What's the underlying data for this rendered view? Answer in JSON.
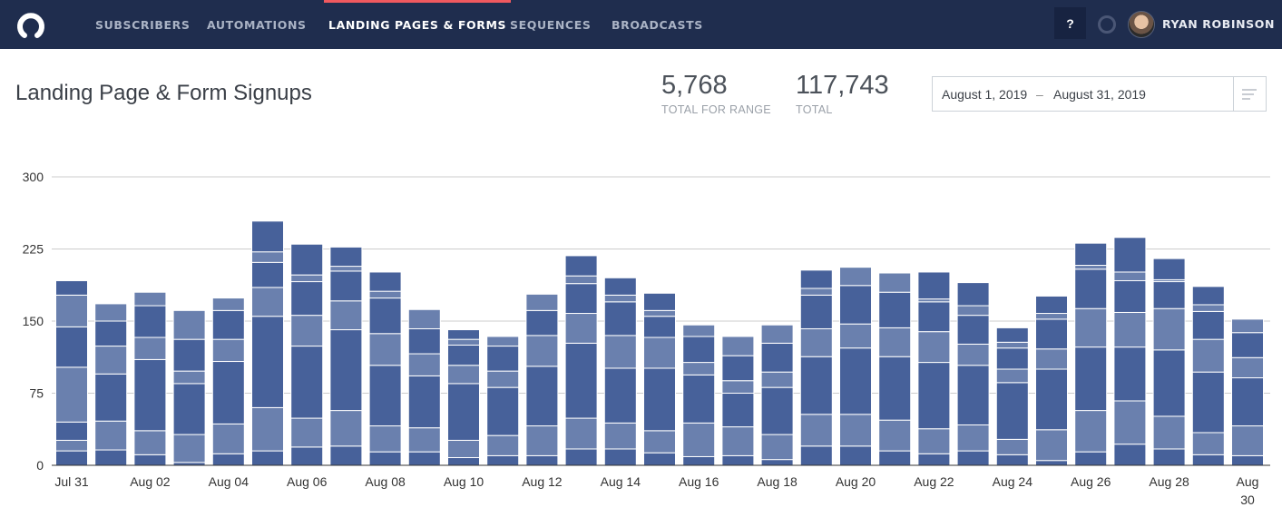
{
  "nav": {
    "logo": "convertkit-logo",
    "tabs": [
      {
        "label": "SUBSCRIBERS",
        "active": false
      },
      {
        "label": "AUTOMATIONS",
        "active": false
      },
      {
        "label": "LANDING PAGES & FORMS",
        "active": true
      },
      {
        "label": "SEQUENCES",
        "active": false
      },
      {
        "label": "BROADCASTS",
        "active": false
      }
    ],
    "help_label": "?",
    "user_name": "RYAN ROBINSON",
    "accent": "#f0595f"
  },
  "page": {
    "title": "Landing Page & Form Signups",
    "stats": [
      {
        "value": "5,768",
        "label": "TOTAL FOR RANGE"
      },
      {
        "value": "117,743",
        "label": "TOTAL"
      }
    ],
    "date_range": {
      "start": "August 1, 2019",
      "separator": "–",
      "end": "August 31, 2019",
      "icon": "menu-lines-icon"
    }
  },
  "chart_data": {
    "type": "bar",
    "stacked": true,
    "ylim": [
      0,
      300
    ],
    "yticks": [
      0,
      75,
      150,
      225,
      300
    ],
    "grid": true,
    "colors": [
      "#47619a",
      "#6a80ae"
    ],
    "categories": [
      "Jul 31",
      "Aug 01",
      "Aug 02",
      "Aug 03",
      "Aug 04",
      "Aug 05",
      "Aug 06",
      "Aug 07",
      "Aug 08",
      "Aug 09",
      "Aug 10",
      "Aug 11",
      "Aug 12",
      "Aug 13",
      "Aug 14",
      "Aug 15",
      "Aug 16",
      "Aug 17",
      "Aug 18",
      "Aug 19",
      "Aug 20",
      "Aug 21",
      "Aug 22",
      "Aug 23",
      "Aug 24",
      "Aug 25",
      "Aug 26",
      "Aug 27",
      "Aug 28",
      "Aug 29",
      "Aug 30"
    ],
    "xtick_labels": [
      "Jul 31",
      "Aug 02",
      "Aug 04",
      "Aug 06",
      "Aug 08",
      "Aug 10",
      "Aug 12",
      "Aug 14",
      "Aug 16",
      "Aug 18",
      "Aug 20",
      "Aug 22",
      "Aug 24",
      "Aug 26",
      "Aug 28",
      "Aug 30"
    ],
    "cumulative_stacks": [
      [
        15,
        26,
        45,
        102,
        144,
        177,
        192
      ],
      [
        16,
        46,
        95,
        124,
        150,
        168
      ],
      [
        11,
        36,
        110,
        133,
        166,
        180
      ],
      [
        3,
        32,
        85,
        98,
        131,
        161
      ],
      [
        12,
        43,
        108,
        131,
        161,
        174
      ],
      [
        15,
        60,
        155,
        185,
        211,
        222,
        254
      ],
      [
        19,
        49,
        124,
        156,
        191,
        198,
        230
      ],
      [
        20,
        57,
        141,
        171,
        202,
        207,
        227
      ],
      [
        14,
        41,
        104,
        137,
        174,
        181,
        201
      ],
      [
        14,
        39,
        93,
        116,
        142,
        162
      ],
      [
        8,
        26,
        85,
        104,
        125,
        131,
        141
      ],
      [
        10,
        31,
        81,
        98,
        124,
        134
      ],
      [
        10,
        41,
        103,
        135,
        161,
        178
      ],
      [
        17,
        49,
        127,
        158,
        189,
        197,
        218
      ],
      [
        17,
        44,
        101,
        135,
        170,
        177,
        195
      ],
      [
        13,
        36,
        101,
        133,
        155,
        161,
        179
      ],
      [
        9,
        44,
        94,
        107,
        134,
        146
      ],
      [
        10,
        40,
        75,
        88,
        114,
        134
      ],
      [
        6,
        32,
        81,
        97,
        127,
        146
      ],
      [
        20,
        53,
        113,
        142,
        177,
        184,
        203
      ],
      [
        20,
        53,
        122,
        147,
        187,
        206
      ],
      [
        15,
        47,
        113,
        143,
        180,
        200
      ],
      [
        12,
        38,
        107,
        139,
        170,
        173,
        201
      ],
      [
        15,
        42,
        104,
        126,
        156,
        166,
        190
      ],
      [
        11,
        27,
        86,
        100,
        122,
        128,
        143
      ],
      [
        5,
        37,
        100,
        121,
        152,
        158,
        176
      ],
      [
        14,
        57,
        123,
        163,
        204,
        208,
        231
      ],
      [
        22,
        67,
        123,
        159,
        192,
        201,
        237
      ],
      [
        17,
        51,
        120,
        163,
        191,
        193,
        215
      ],
      [
        11,
        34,
        97,
        131,
        160,
        167,
        186
      ],
      [
        10,
        41,
        91,
        112,
        138,
        152
      ]
    ]
  }
}
